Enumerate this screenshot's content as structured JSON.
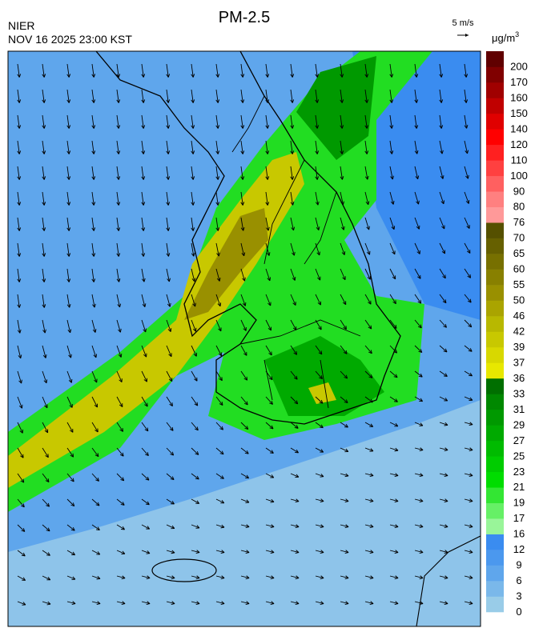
{
  "header": {
    "title": "PM-2.5",
    "agency": "NIER",
    "timestamp": "NOV 16 2025 23:00 KST"
  },
  "wind_scale": {
    "label": "5 m/s"
  },
  "colorbar": {
    "unit": "μg/m",
    "unit_exponent": "3",
    "labels": [
      0,
      3,
      6,
      9,
      12,
      16,
      17,
      19,
      21,
      23,
      25,
      27,
      29,
      31,
      33,
      36,
      37,
      39,
      42,
      46,
      50,
      55,
      60,
      65,
      70,
      76,
      80,
      90,
      100,
      110,
      120,
      140,
      150,
      160,
      170,
      200
    ],
    "colors": [
      "#99cce8",
      "#7ab8ea",
      "#5fa6ec",
      "#4b98ee",
      "#3a8cf0",
      "#99f599",
      "#66f066",
      "#33e633",
      "#00dd00",
      "#00cc00",
      "#00bb00",
      "#00aa00",
      "#009900",
      "#008800",
      "#006f00",
      "#e8e800",
      "#d8d800",
      "#c8c800",
      "#b8b800",
      "#aaa400",
      "#999000",
      "#888000",
      "#777000",
      "#666000",
      "#555000",
      "#ff9999",
      "#ff8080",
      "#ff6060",
      "#ff4040",
      "#ff2020",
      "#ff0000",
      "#e00000",
      "#c00000",
      "#a00000",
      "#800000",
      "#600000"
    ]
  }
}
